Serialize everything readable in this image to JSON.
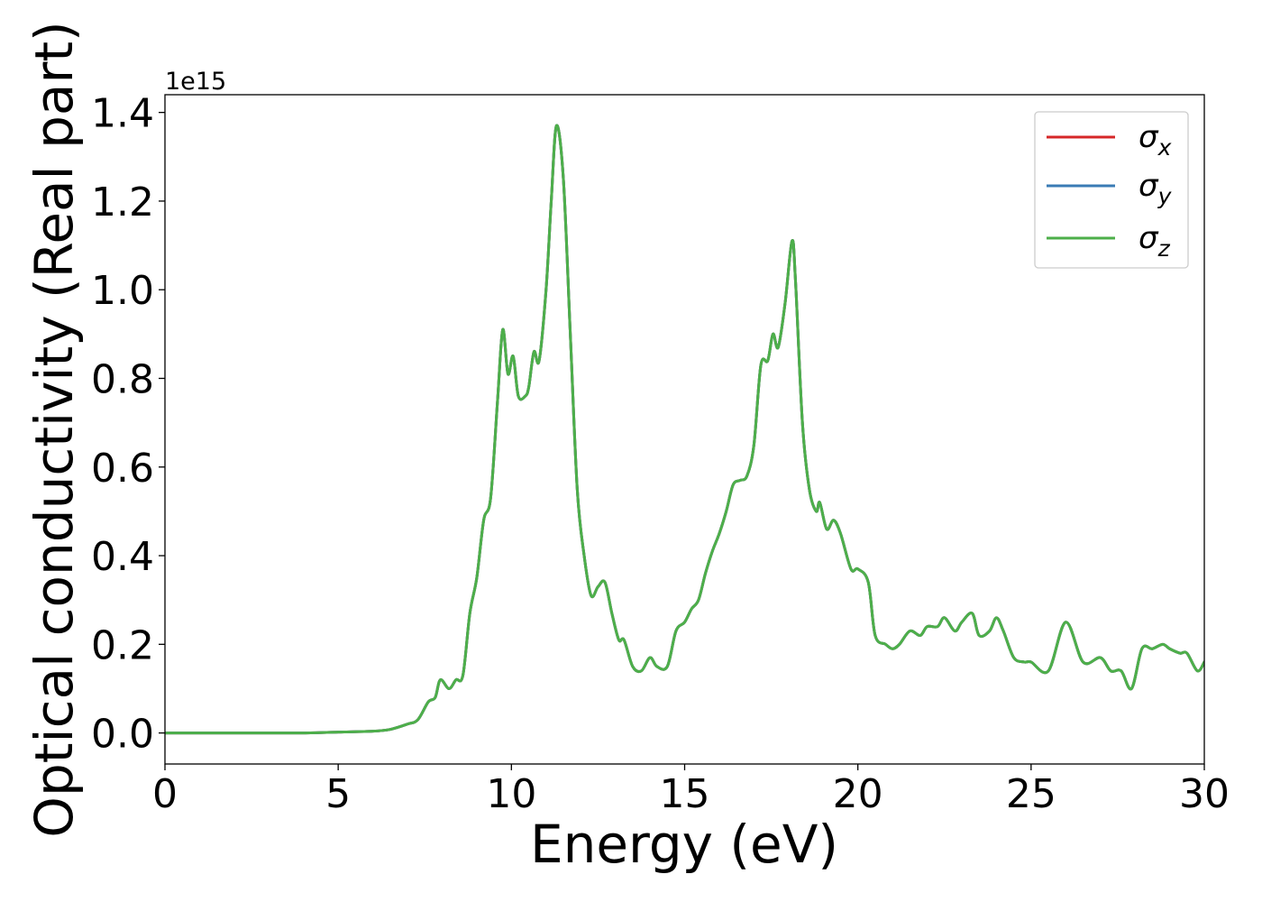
{
  "chart_data": {
    "type": "line",
    "title": "",
    "xlabel": "Energy (eV)",
    "ylabel": "Optical conductivity (Real part)",
    "y_offset_text": "1e15",
    "xlim": [
      0,
      30
    ],
    "ylim": [
      -0.07,
      1.44
    ],
    "xticks": [
      0,
      5,
      10,
      15,
      20,
      25,
      30
    ],
    "xtick_labels": [
      "0",
      "5",
      "10",
      "15",
      "20",
      "25",
      "30"
    ],
    "yticks": [
      0.0,
      0.2,
      0.4,
      0.6,
      0.8,
      1.0,
      1.2,
      1.4
    ],
    "ytick_labels": [
      "0.0",
      "0.2",
      "0.4",
      "0.6",
      "0.8",
      "1.0",
      "1.2",
      "1.4"
    ],
    "grid": false,
    "legend_position": "top-right",
    "series": [
      {
        "name": "σx",
        "symbol": "σ",
        "subscript": "x",
        "color": "#d62728"
      },
      {
        "name": "σy",
        "symbol": "σ",
        "subscript": "y",
        "color": "#3a7bb5"
      },
      {
        "name": "σz",
        "symbol": "σ",
        "subscript": "z",
        "color": "#4daf4a"
      }
    ],
    "x": [
      0,
      1,
      2,
      3,
      4,
      5,
      6,
      6.5,
      7.0,
      7.3,
      7.6,
      7.8,
      7.95,
      8.2,
      8.4,
      8.6,
      8.8,
      9.0,
      9.2,
      9.4,
      9.6,
      9.75,
      9.9,
      10.05,
      10.2,
      10.4,
      10.5,
      10.65,
      10.8,
      11.0,
      11.15,
      11.3,
      11.5,
      11.7,
      11.9,
      12.1,
      12.3,
      12.5,
      12.7,
      12.9,
      13.1,
      13.25,
      13.5,
      13.75,
      14.0,
      14.2,
      14.5,
      14.75,
      15.0,
      15.2,
      15.4,
      15.6,
      15.8,
      16.0,
      16.2,
      16.4,
      16.6,
      16.8,
      17.0,
      17.2,
      17.4,
      17.55,
      17.7,
      17.9,
      18.1,
      18.2,
      18.4,
      18.6,
      18.8,
      18.9,
      19.1,
      19.3,
      19.5,
      19.8,
      20.0,
      20.3,
      20.5,
      20.8,
      21.0,
      21.2,
      21.5,
      21.8,
      22.0,
      22.3,
      22.5,
      22.8,
      23.0,
      23.3,
      23.5,
      23.8,
      24.0,
      24.2,
      24.5,
      24.8,
      25.0,
      25.5,
      26.0,
      26.5,
      27.0,
      27.3,
      27.6,
      27.9,
      28.2,
      28.5,
      28.8,
      29.0,
      29.3,
      29.5,
      29.8,
      30.0
    ],
    "values": [
      0.0,
      0.0,
      0.0,
      0.0,
      0.0,
      0.002,
      0.004,
      0.008,
      0.02,
      0.03,
      0.07,
      0.08,
      0.12,
      0.1,
      0.12,
      0.13,
      0.27,
      0.35,
      0.48,
      0.53,
      0.75,
      0.91,
      0.81,
      0.85,
      0.76,
      0.76,
      0.78,
      0.86,
      0.84,
      1.0,
      1.2,
      1.37,
      1.25,
      0.9,
      0.55,
      0.4,
      0.31,
      0.33,
      0.34,
      0.27,
      0.21,
      0.21,
      0.15,
      0.14,
      0.17,
      0.15,
      0.15,
      0.23,
      0.25,
      0.28,
      0.3,
      0.36,
      0.41,
      0.45,
      0.5,
      0.56,
      0.57,
      0.58,
      0.65,
      0.83,
      0.84,
      0.9,
      0.87,
      0.97,
      1.11,
      1.02,
      0.7,
      0.55,
      0.5,
      0.52,
      0.46,
      0.48,
      0.45,
      0.37,
      0.37,
      0.34,
      0.22,
      0.2,
      0.19,
      0.2,
      0.23,
      0.22,
      0.24,
      0.24,
      0.26,
      0.23,
      0.25,
      0.27,
      0.22,
      0.23,
      0.26,
      0.23,
      0.17,
      0.16,
      0.16,
      0.14,
      0.25,
      0.16,
      0.17,
      0.14,
      0.14,
      0.1,
      0.19,
      0.19,
      0.2,
      0.19,
      0.18,
      0.18,
      0.14,
      0.16
    ]
  }
}
